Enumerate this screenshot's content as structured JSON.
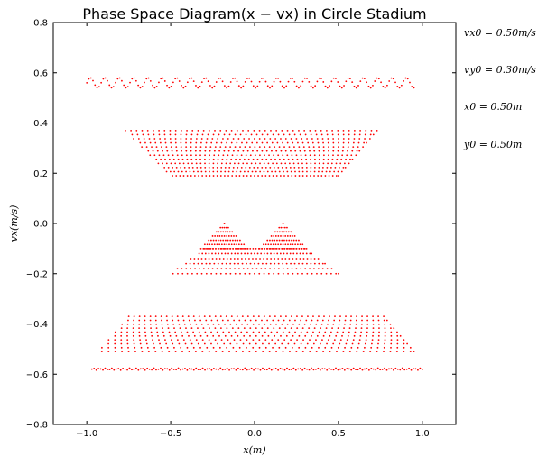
{
  "chart_data": {
    "type": "scatter",
    "title": "Phase Space Diagram(x − vx) in Circle Stadium",
    "xlabel": "x(m)",
    "ylabel": "vx(m/s)",
    "xlim": [
      -1.2,
      1.2
    ],
    "ylim": [
      -0.8,
      0.8
    ],
    "xticks": [
      -1.0,
      -0.5,
      0.0,
      0.5,
      1.0
    ],
    "xtick_labels": [
      "−1.0",
      "−0.5",
      "0.0",
      "0.5",
      "1.0"
    ],
    "yticks": [
      -0.8,
      -0.6,
      -0.4,
      -0.2,
      0.0,
      0.2,
      0.4,
      0.6,
      0.8
    ],
    "ytick_labels": [
      "−0.8",
      "−0.6",
      "−0.4",
      "−0.2",
      "0.0",
      "0.2",
      "0.4",
      "0.6",
      "0.8"
    ],
    "grid": false,
    "marker_color": "#ff0000",
    "annotations": [
      "vx0 = 0.50m/s",
      "vy0 = 0.30m/s",
      "x0 = 0.50m",
      "y0 = 0.50m"
    ],
    "bands": [
      {
        "kind": "wavy",
        "vx_center": 0.56,
        "amplitude": 0.02,
        "x_left": -1.0,
        "x_right": 0.95,
        "points": 160
      },
      {
        "kind": "trapezoid",
        "vx_top": 0.37,
        "vx_bottom": 0.19,
        "x_top": [
          -0.77,
          0.73
        ],
        "x_bottom": [
          -0.5,
          0.5
        ],
        "rows": 12,
        "cols": 46
      },
      {
        "kind": "trapezoid",
        "vx_top": -0.1,
        "vx_bottom": -0.2,
        "x_top": [
          -0.3,
          0.3
        ],
        "x_bottom": [
          -0.5,
          0.5
        ],
        "rows": 6,
        "cols": 36
      },
      {
        "kind": "triangle",
        "apex_x": -0.18,
        "vx_top": 0.0,
        "vx_bottom": -0.1,
        "half_width_bottom": 0.14,
        "rows": 7
      },
      {
        "kind": "triangle",
        "apex_x": 0.17,
        "vx_top": 0.0,
        "vx_bottom": -0.1,
        "half_width_bottom": 0.14,
        "rows": 7
      },
      {
        "kind": "trapezoid",
        "vx_top": -0.37,
        "vx_bottom": -0.51,
        "x_top": [
          -0.75,
          0.77
        ],
        "x_bottom": [
          -0.93,
          0.95
        ],
        "rows": 10,
        "cols": 48
      },
      {
        "kind": "line",
        "vx": -0.58,
        "x_left": -0.97,
        "x_right": 1.0,
        "points": 150,
        "jitter": 0.004
      }
    ]
  }
}
